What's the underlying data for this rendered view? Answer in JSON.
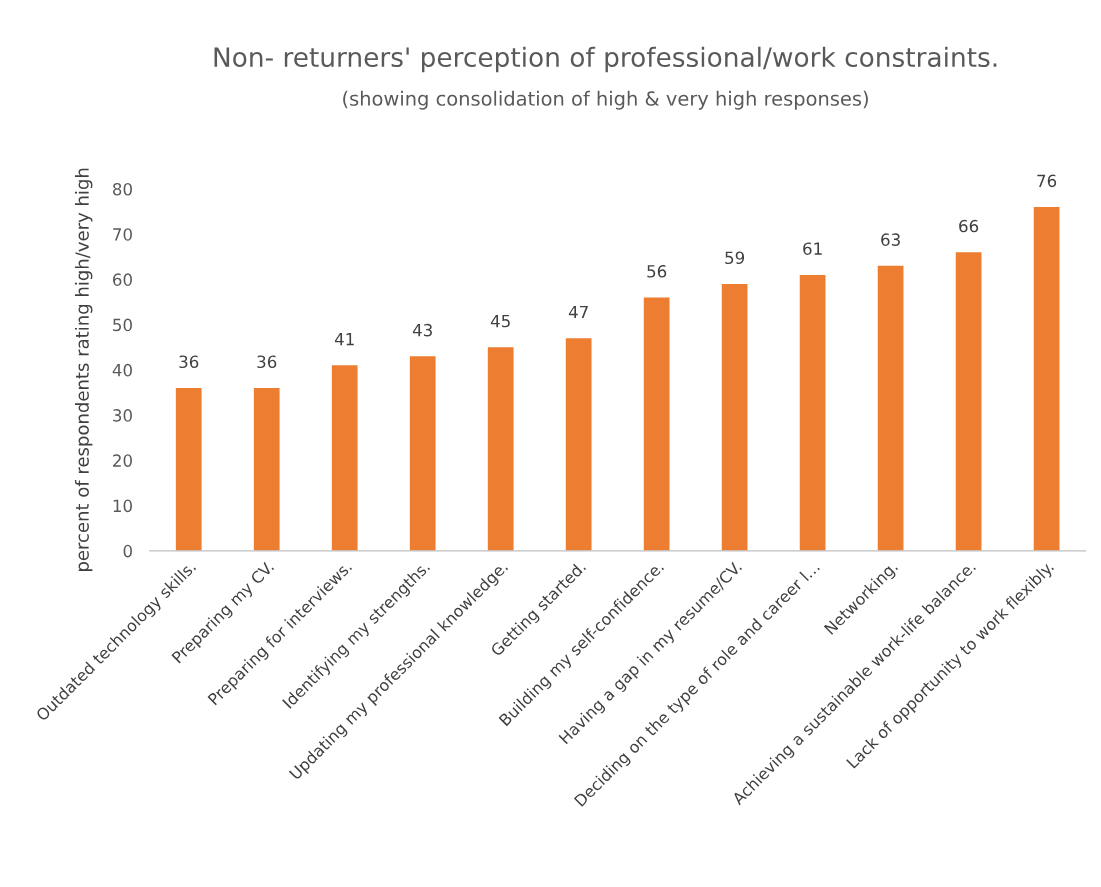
{
  "chart_data": {
    "type": "bar",
    "title": "Non- returners' perception of professional/work constraints.",
    "subtitle": "(showing consolidation of high & very high responses)",
    "ylabel": "percent of respondents rating high/very high",
    "categories": [
      "Outdated technology skills.",
      "Preparing my CV.",
      "Preparing for interviews.",
      "Identifying my strengths.",
      "Updating my professional knowledge.",
      "Getting started.",
      "Building my self-confidence.",
      "Having a gap in my resume/CV.",
      "Deciding on the type of role and career l…",
      "Networking.",
      "Achieving a sustainable work-life balance.",
      "Lack of opportunity to work flexibly."
    ],
    "values": [
      36,
      36,
      41,
      43,
      45,
      47,
      56,
      59,
      61,
      63,
      66,
      76
    ],
    "color": "#ed7d31",
    "ylim": [
      0,
      80
    ],
    "yticks": [
      0,
      10,
      20,
      30,
      40,
      50,
      60,
      70,
      80
    ],
    "grid": false,
    "data_labels": true,
    "legend": false
  }
}
